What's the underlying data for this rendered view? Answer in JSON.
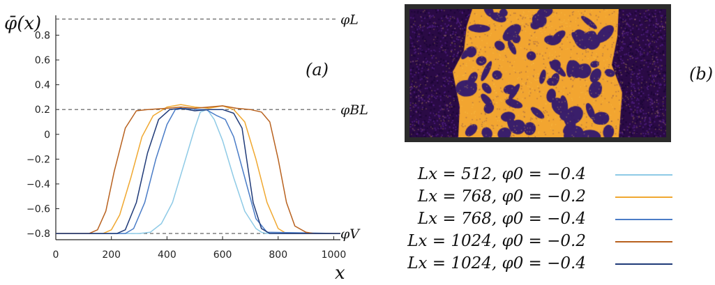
{
  "chart_data": {
    "type": "line",
    "ylabel": "φ̄(x)",
    "xlabel": "x",
    "xlim": [
      0,
      1024
    ],
    "ylim": [
      -0.85,
      0.96
    ],
    "xticks": [
      "0",
      "200",
      "400",
      "600",
      "800",
      "1000"
    ],
    "yticks": [
      "0.8",
      "0.6",
      "0.4",
      "0.2",
      "0",
      "−0.2",
      "−0.4",
      "−0.6",
      "−0.8"
    ],
    "grid": false,
    "reference_lines": [
      {
        "label": "φL",
        "y": 0.93
      },
      {
        "label": "φBL",
        "y": 0.2
      },
      {
        "label": "φV",
        "y": -0.8
      }
    ],
    "panel_labels": {
      "a": "(a)",
      "b": "(b)"
    },
    "legend_placement": "bottom-right",
    "series": [
      {
        "name": "Lx = 512, φ0 = −0.4",
        "color": "#8ecae6",
        "x": [
          0,
          300,
          340,
          380,
          420,
          460,
          500,
          520,
          545,
          570,
          600,
          640,
          680,
          720,
          740,
          760,
          1024
        ],
        "y": [
          -0.8,
          -0.8,
          -0.79,
          -0.72,
          -0.55,
          -0.25,
          0.05,
          0.18,
          0.2,
          0.12,
          -0.05,
          -0.35,
          -0.62,
          -0.76,
          -0.79,
          -0.8,
          -0.8
        ]
      },
      {
        "name": "Lx = 768, φ0 = −0.2",
        "color": "#f0a830",
        "x": [
          0,
          170,
          200,
          230,
          270,
          310,
          350,
          400,
          450,
          500,
          550,
          600,
          640,
          680,
          720,
          760,
          800,
          830,
          1024
        ],
        "y": [
          -0.8,
          -0.8,
          -0.77,
          -0.65,
          -0.35,
          -0.02,
          0.15,
          0.22,
          0.24,
          0.22,
          0.21,
          0.23,
          0.2,
          0.1,
          -0.2,
          -0.55,
          -0.76,
          -0.8,
          -0.8
        ]
      },
      {
        "name": "Lx = 768, φ0 = −0.4",
        "color": "#4a7cc7",
        "x": [
          0,
          250,
          280,
          320,
          360,
          400,
          430,
          470,
          510,
          540,
          580,
          610,
          640,
          680,
          720,
          760,
          1024
        ],
        "y": [
          -0.8,
          -0.8,
          -0.76,
          -0.55,
          -0.2,
          0.08,
          0.2,
          0.21,
          0.2,
          0.2,
          0.15,
          0.12,
          -0.02,
          -0.35,
          -0.68,
          -0.79,
          -0.8
        ]
      },
      {
        "name": "Lx = 1024, φ0 = −0.2",
        "color": "#b8611e",
        "x": [
          0,
          120,
          150,
          180,
          210,
          250,
          290,
          330,
          400,
          450,
          500,
          550,
          600,
          650,
          700,
          740,
          770,
          800,
          830,
          860,
          900,
          930,
          1024
        ],
        "y": [
          -0.8,
          -0.8,
          -0.77,
          -0.62,
          -0.3,
          0.05,
          0.19,
          0.2,
          0.21,
          0.22,
          0.21,
          0.22,
          0.23,
          0.21,
          0.2,
          0.18,
          0.1,
          -0.2,
          -0.55,
          -0.74,
          -0.79,
          -0.8,
          -0.8
        ]
      },
      {
        "name": "Lx = 1024, φ0 = −0.4",
        "color": "#1f3a78",
        "x": [
          0,
          220,
          250,
          290,
          330,
          370,
          410,
          450,
          500,
          550,
          600,
          640,
          670,
          690,
          710,
          740,
          770,
          1024
        ],
        "y": [
          -0.8,
          -0.8,
          -0.77,
          -0.55,
          -0.15,
          0.12,
          0.2,
          0.21,
          0.19,
          0.2,
          0.2,
          0.17,
          0.05,
          -0.25,
          -0.55,
          -0.76,
          -0.8,
          -0.8
        ]
      }
    ]
  },
  "inset": {
    "background_color": "#2a0a45",
    "dense_color": "#f2a530",
    "fill_color": "#3a1f6b"
  }
}
